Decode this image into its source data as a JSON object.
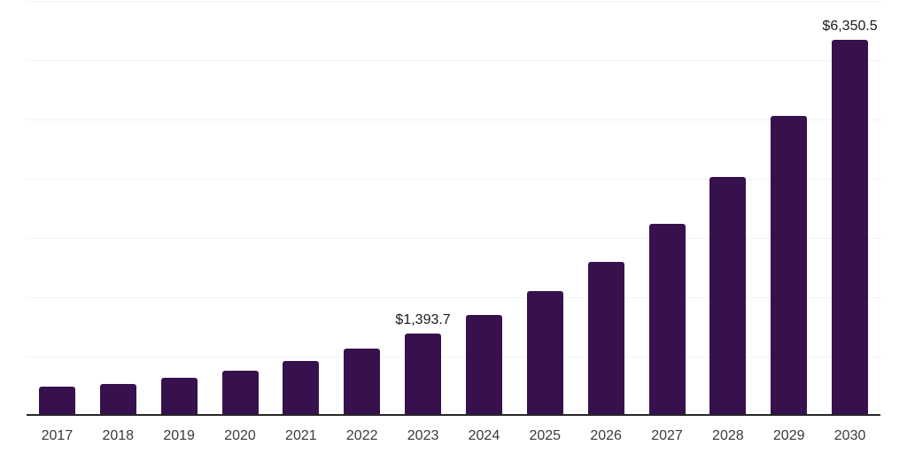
{
  "chart_data": {
    "type": "bar",
    "title": "",
    "xlabel": "",
    "ylabel": "",
    "categories": [
      "2017",
      "2018",
      "2019",
      "2020",
      "2021",
      "2022",
      "2023",
      "2024",
      "2025",
      "2026",
      "2027",
      "2028",
      "2029",
      "2030"
    ],
    "values": [
      490,
      540,
      640,
      765,
      925,
      1140,
      1393.7,
      1700,
      2100,
      2600,
      3240,
      4030,
      5060,
      6350.5
    ],
    "data_labels": [
      null,
      null,
      null,
      null,
      null,
      null,
      "$1,393.7",
      null,
      null,
      null,
      null,
      null,
      null,
      "$6,350.5"
    ],
    "ylim": [
      0,
      7000
    ],
    "gridline_step": 1000,
    "grid": "horizontal-only",
    "legend": "none",
    "y_tick_labels_visible": false,
    "colors": {
      "bar": "#37114d",
      "axis_line": "#262626",
      "gridline": "#f2f2f3",
      "data_label": "#1a1a1a",
      "x_tick_label": "#3a3a3a",
      "background": "#ffffff"
    }
  }
}
